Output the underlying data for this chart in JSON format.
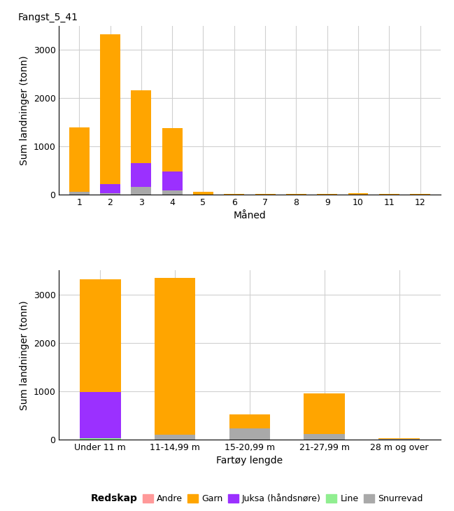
{
  "title": "Fangst_5_41",
  "colors": {
    "Andre": "#FF9999",
    "Garn": "#FFA500",
    "Juksa": "#9B30FF",
    "Line": "#90EE90",
    "Snurrevad": "#A9A9A9"
  },
  "top_chart": {
    "xlabel": "Måned",
    "ylabel": "Sum landninger (tonn)",
    "months": [
      1,
      2,
      3,
      4,
      5,
      6,
      7,
      8,
      9,
      10,
      11,
      12
    ],
    "Garn": [
      1340,
      3100,
      1500,
      900,
      60,
      4,
      3,
      3,
      3,
      18,
      12,
      3
    ],
    "Juksa": [
      0,
      200,
      500,
      400,
      0,
      0,
      0,
      0,
      0,
      0,
      0,
      0
    ],
    "Snurrevad": [
      50,
      20,
      155,
      80,
      0,
      0,
      0,
      0,
      0,
      0,
      0,
      0
    ],
    "Line": [
      0,
      0,
      0,
      0,
      0,
      3,
      3,
      3,
      3,
      3,
      3,
      3
    ],
    "Andre": [
      0,
      0,
      0,
      0,
      3,
      0,
      0,
      0,
      0,
      0,
      0,
      0
    ]
  },
  "bot_chart": {
    "xlabel": "Fartøy lengde",
    "ylabel": "Sum landninger (tonn)",
    "categories": [
      "Under 11 m",
      "11-14,99 m",
      "15-20,99 m",
      "21-27,99 m",
      "28 m og over"
    ],
    "Garn": [
      2340,
      3250,
      290,
      840,
      4
    ],
    "Juksa": [
      950,
      0,
      0,
      0,
      0
    ],
    "Snurrevad": [
      0,
      100,
      230,
      110,
      18
    ],
    "Line": [
      30,
      0,
      0,
      0,
      0
    ],
    "Andre": [
      0,
      0,
      0,
      0,
      0
    ]
  },
  "ylim": [
    0,
    3500
  ],
  "yticks": [
    0,
    1000,
    2000,
    3000
  ],
  "legend_labels": [
    "Andre",
    "Garn",
    "Juksa (håndsnøre)",
    "Line",
    "Snurrevad"
  ],
  "legend_colors": [
    "#FF9999",
    "#FFA500",
    "#9B30FF",
    "#90EE90",
    "#A9A9A9"
  ]
}
